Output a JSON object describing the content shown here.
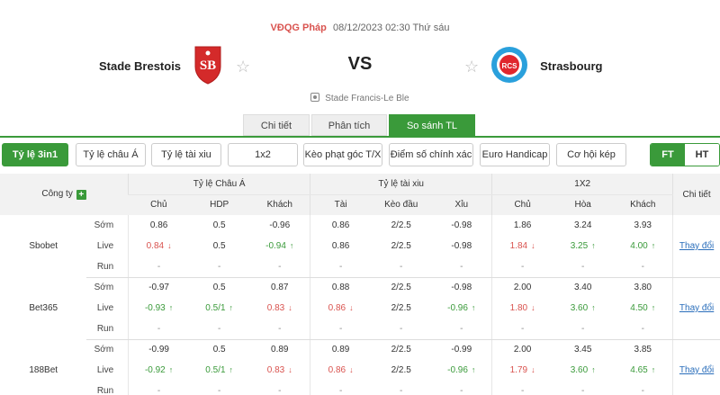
{
  "match": {
    "league": "VĐQG Pháp",
    "datetime": "08/12/2023 02:30 Thứ sáu",
    "home": "Stade Brestois",
    "away": "Strasbourg",
    "vs": "VS",
    "venue": "Stade Francis-Le Ble",
    "home_logo_text": "SB",
    "away_logo_text": "RCS"
  },
  "subtabs": [
    "Chi tiết",
    "Phân tích",
    "So sánh TL"
  ],
  "filters": [
    "Tỷ lệ 3in1",
    "Tỷ lệ châu Á",
    "Tỷ lệ tài xiu",
    "1x2",
    "Kèo phạt góc T/X",
    "Điểm số chính xác",
    "Euro Handicap",
    "Cơ hội kép"
  ],
  "ft_ht": [
    "FT",
    "HT"
  ],
  "table": {
    "company_header": "Công ty",
    "groups": [
      "Tỷ lệ Châu Á",
      "Tỷ lệ tài xiu",
      "1X2"
    ],
    "detail_header": "Chi tiết",
    "subheaders": [
      "Chủ",
      "HDP",
      "Khách",
      "Tài",
      "Kèo đầu",
      "Xỉu",
      "Chủ",
      "Hòa",
      "Khách"
    ],
    "change_label": "Thay đổi",
    "companies": [
      {
        "name": "Sbobet",
        "rows": [
          {
            "kind": "Sớm",
            "cells": [
              "0.86",
              "0.5",
              "-0.96",
              "0.86",
              "2/2.5",
              "-0.98",
              "1.86",
              "3.24",
              "3.93"
            ],
            "dirs": [
              "",
              "",
              "",
              "",
              "",
              "",
              "",
              "",
              ""
            ]
          },
          {
            "kind": "Live",
            "cells": [
              "0.84",
              "0.5",
              "-0.94",
              "0.86",
              "2/2.5",
              "-0.98",
              "1.84",
              "3.25",
              "4.00"
            ],
            "dirs": [
              "down",
              "",
              "up",
              "",
              "",
              "",
              "down",
              "up",
              "up"
            ]
          },
          {
            "kind": "Run",
            "cells": [
              "-",
              "-",
              "-",
              "-",
              "-",
              "-",
              "-",
              "-",
              "-"
            ],
            "dirs": [
              "",
              "",
              "",
              "",
              "",
              "",
              "",
              "",
              ""
            ]
          }
        ]
      },
      {
        "name": "Bet365",
        "rows": [
          {
            "kind": "Sớm",
            "cells": [
              "-0.97",
              "0.5",
              "0.87",
              "0.88",
              "2/2.5",
              "-0.98",
              "2.00",
              "3.40",
              "3.80"
            ],
            "dirs": [
              "",
              "",
              "",
              "",
              "",
              "",
              "",
              "",
              ""
            ]
          },
          {
            "kind": "Live",
            "cells": [
              "-0.93",
              "0.5/1",
              "0.83",
              "0.86",
              "2/2.5",
              "-0.96",
              "1.80",
              "3.60",
              "4.50"
            ],
            "dirs": [
              "up",
              "up",
              "down",
              "down",
              "",
              "up",
              "down",
              "up",
              "up"
            ]
          },
          {
            "kind": "Run",
            "cells": [
              "-",
              "-",
              "-",
              "-",
              "-",
              "-",
              "-",
              "-",
              "-"
            ],
            "dirs": [
              "",
              "",
              "",
              "",
              "",
              "",
              "",
              "",
              ""
            ]
          }
        ]
      },
      {
        "name": "188Bet",
        "rows": [
          {
            "kind": "Sớm",
            "cells": [
              "-0.99",
              "0.5",
              "0.89",
              "0.89",
              "2/2.5",
              "-0.99",
              "2.00",
              "3.45",
              "3.85"
            ],
            "dirs": [
              "",
              "",
              "",
              "",
              "",
              "",
              "",
              "",
              ""
            ]
          },
          {
            "kind": "Live",
            "cells": [
              "-0.92",
              "0.5/1",
              "0.83",
              "0.86",
              "2/2.5",
              "-0.96",
              "1.79",
              "3.60",
              "4.65"
            ],
            "dirs": [
              "up",
              "up",
              "down",
              "down",
              "",
              "up",
              "down",
              "up",
              "up"
            ]
          },
          {
            "kind": "Run",
            "cells": [
              "-",
              "-",
              "-",
              "-",
              "-",
              "-",
              "-",
              "-",
              "-"
            ],
            "dirs": [
              "",
              "",
              "",
              "",
              "",
              "",
              "",
              "",
              ""
            ]
          }
        ]
      }
    ]
  },
  "colors": {
    "accent": "#3a9a3a",
    "down": "#d9534f",
    "up": "#3a9a3a",
    "link": "#2a6ebb"
  }
}
